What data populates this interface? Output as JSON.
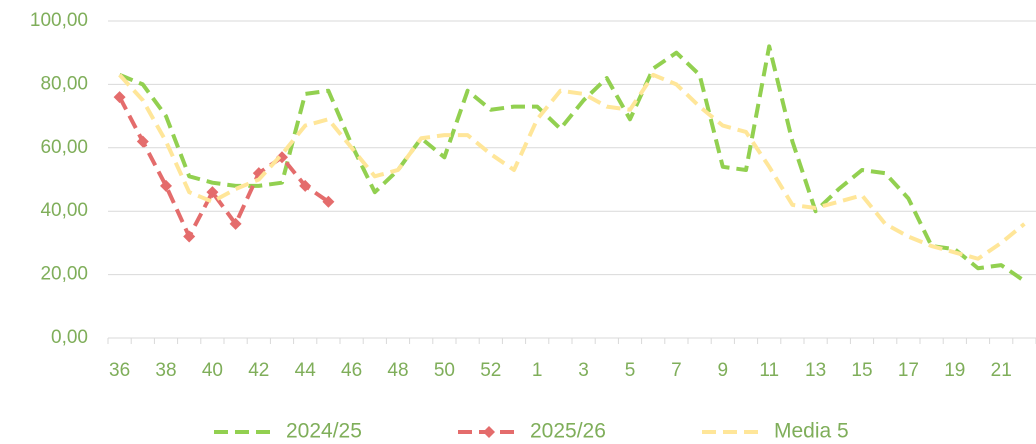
{
  "chart_data": {
    "type": "line",
    "categories": [
      "36",
      null,
      "38",
      null,
      "40",
      null,
      "42",
      null,
      "44",
      null,
      "46",
      null,
      "48",
      null,
      "50",
      null,
      "52",
      null,
      "1",
      null,
      "3",
      null,
      "5",
      null,
      "7",
      null,
      "9",
      null,
      "11",
      null,
      "13",
      null,
      "15",
      null,
      "17",
      null,
      "19",
      null,
      "21",
      null
    ],
    "series": [
      {
        "name": "2024/25",
        "color": "#92d050",
        "marker": "none",
        "values": [
          83,
          80,
          70,
          51,
          49,
          48,
          48,
          49,
          77,
          78,
          61,
          46,
          53,
          63,
          57,
          78,
          72,
          73,
          73,
          66,
          75,
          82,
          69,
          85,
          90,
          83,
          54,
          53,
          92,
          62,
          40,
          47,
          53,
          52,
          44,
          29,
          28,
          22,
          23,
          18
        ]
      },
      {
        "name": "2025/26",
        "color": "#e46c6c",
        "marker": "diamond",
        "values": [
          76,
          62,
          48,
          32,
          46,
          36,
          52,
          57,
          48,
          43,
          null,
          null,
          null,
          null,
          null,
          null,
          null,
          null,
          null,
          null,
          null,
          null,
          null,
          null,
          null,
          null,
          null,
          null,
          null,
          null,
          null,
          null,
          null,
          null,
          null,
          null,
          null,
          null,
          null,
          null
        ]
      },
      {
        "name": "Media 5",
        "color": "#ffe699",
        "marker": "none",
        "values": [
          83,
          75,
          62,
          46,
          43,
          47,
          50,
          58,
          67,
          69,
          60,
          51,
          53,
          63,
          64,
          64,
          58,
          53,
          69,
          78,
          77,
          73,
          72,
          83,
          80,
          73,
          67,
          65,
          54,
          42,
          41,
          43,
          45,
          36,
          32,
          29,
          27,
          25,
          30,
          36
        ]
      }
    ],
    "ylim": [
      0,
      100
    ],
    "yticks": [
      {
        "value": 0,
        "label": "0,00"
      },
      {
        "value": 20,
        "label": "20,00"
      },
      {
        "value": 40,
        "label": "40,00"
      },
      {
        "value": 60,
        "label": "60,00"
      },
      {
        "value": 80,
        "label": "80,00"
      },
      {
        "value": 100,
        "label": "100,00"
      }
    ],
    "grid": true,
    "legend": "bottom"
  }
}
